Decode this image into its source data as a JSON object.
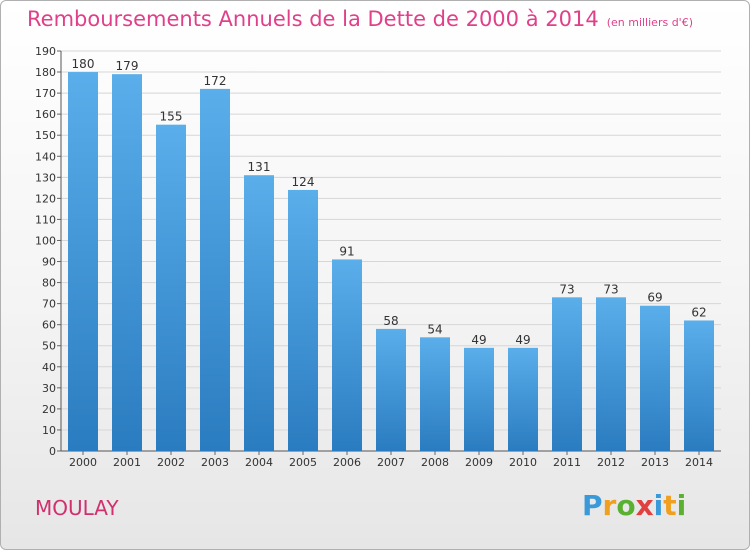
{
  "title": "Remboursements Annuels de la Dette de 2000 à 2014",
  "subtitle": "(en milliers d'€)",
  "commune": "MOULAY",
  "logo": {
    "letters": [
      "P",
      "r",
      "o",
      "x",
      "i",
      "t",
      "i"
    ],
    "colors": [
      "#3a9ad9",
      "#f0a020",
      "#5ab030",
      "#e04040",
      "#3a9ad9",
      "#f0a020",
      "#5ab030"
    ]
  },
  "colors": {
    "title": "#e0408a",
    "bar_top": "#5aaeea",
    "bar_bottom": "#2a7cc0"
  },
  "chart_data": {
    "type": "bar",
    "title": "Remboursements Annuels de la Dette de 2000 à 2014",
    "xlabel": "",
    "ylabel": "",
    "ylim": [
      0,
      190
    ],
    "ytick_step": 10,
    "grid": true,
    "categories": [
      "2000",
      "2001",
      "2002",
      "2003",
      "2004",
      "2005",
      "2006",
      "2007",
      "2008",
      "2009",
      "2010",
      "2011",
      "2012",
      "2013",
      "2014"
    ],
    "values": [
      180,
      179,
      155,
      172,
      131,
      124,
      91,
      58,
      54,
      49,
      49,
      73,
      73,
      69,
      62
    ]
  }
}
